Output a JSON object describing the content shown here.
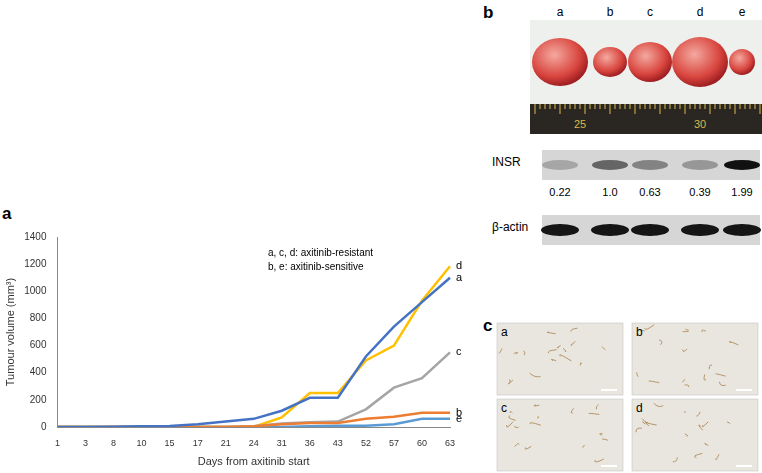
{
  "chart_data": {
    "type": "line",
    "panel_label": "a",
    "x_label": "Days from axitinib start",
    "y_label": "Tumour volume (mm³)",
    "annotations": [
      "a, c, d: axitinib-resistant",
      "b, e: axitinib-sensitive"
    ],
    "categories": [
      1,
      3,
      8,
      10,
      15,
      17,
      21,
      24,
      31,
      36,
      43,
      52,
      57,
      60,
      63
    ],
    "series": [
      {
        "name": "a",
        "color": "#4472c4",
        "values": [
          0,
          0,
          2,
          5,
          8,
          20,
          40,
          60,
          120,
          215,
          215,
          520,
          740,
          920,
          1100
        ]
      },
      {
        "name": "b",
        "color": "#ed7d31",
        "values": [
          0,
          0,
          0,
          0,
          0,
          0,
          0,
          5,
          20,
          30,
          30,
          60,
          75,
          105,
          105
        ]
      },
      {
        "name": "c",
        "color": "#a5a5a5",
        "values": [
          0,
          0,
          0,
          0,
          0,
          0,
          0,
          5,
          25,
          35,
          40,
          130,
          290,
          360,
          550
        ]
      },
      {
        "name": "d",
        "color": "#ffc000",
        "values": [
          0,
          0,
          0,
          0,
          0,
          0,
          0,
          0,
          70,
          250,
          250,
          490,
          600,
          930,
          1185
        ]
      },
      {
        "name": "e",
        "color": "#5b9bd5",
        "values": [
          0,
          0,
          0,
          0,
          0,
          0,
          0,
          0,
          0,
          5,
          10,
          10,
          20,
          60,
          60
        ]
      }
    ],
    "ylim": [
      0,
      1400
    ],
    "yticks": [
      0,
      200,
      400,
      600,
      800,
      1000,
      1200,
      1400
    ],
    "grid": false
  },
  "panel_b": {
    "panel_label": "b",
    "tumours": [
      "a",
      "b",
      "c",
      "d",
      "e"
    ],
    "ruler_labels": [
      "25",
      "30"
    ],
    "blots": [
      {
        "name": "INSR",
        "values": [
          0.22,
          1.0,
          0.63,
          0.39,
          1.99
        ],
        "value_labels": [
          "0.22",
          "1.0",
          "0.63",
          "0.39",
          "1.99"
        ]
      },
      {
        "name": "β-actin"
      }
    ]
  },
  "panel_c": {
    "panel_label": "c",
    "images": [
      "a",
      "b",
      "c",
      "d"
    ]
  }
}
